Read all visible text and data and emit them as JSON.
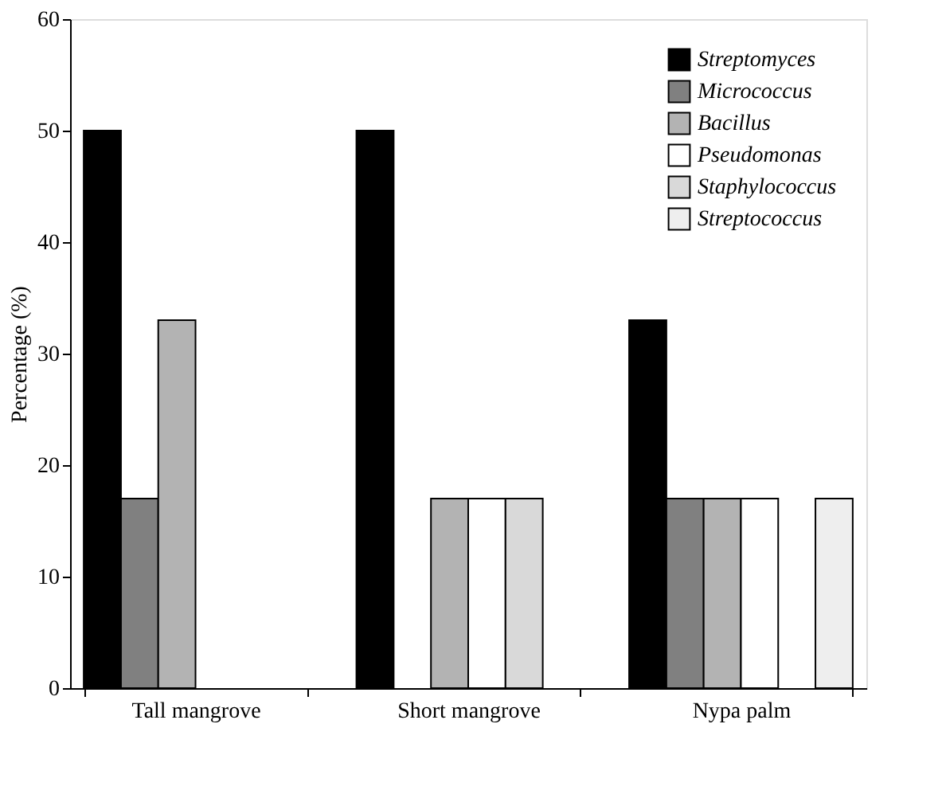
{
  "chart_data": {
    "type": "bar",
    "ylabel": "Percentage (%)",
    "categories": [
      "Tall mangrove",
      "Short mangrove",
      "Nypa palm"
    ],
    "ylim": [
      0,
      60
    ],
    "yticks": [
      0,
      10,
      20,
      30,
      40,
      50,
      60
    ],
    "grid": false,
    "legend": "top right",
    "series": [
      {
        "name": "Streptomyces",
        "color": "#000000",
        "values": [
          50,
          50,
          33
        ]
      },
      {
        "name": "Micrococcus",
        "color": "#808080",
        "values": [
          17,
          null,
          17
        ]
      },
      {
        "name": "Bacillus",
        "color": "#b3b3b3",
        "values": [
          33,
          17,
          17
        ]
      },
      {
        "name": "Pseudomonas",
        "color": "#ffffff",
        "values": [
          null,
          17,
          17
        ]
      },
      {
        "name": "Staphylococcus",
        "color": "#d9d9d9",
        "values": [
          null,
          17,
          null
        ]
      },
      {
        "name": "Streptococcus",
        "color": "#eeeeee",
        "values": [
          null,
          null,
          17
        ]
      }
    ]
  }
}
